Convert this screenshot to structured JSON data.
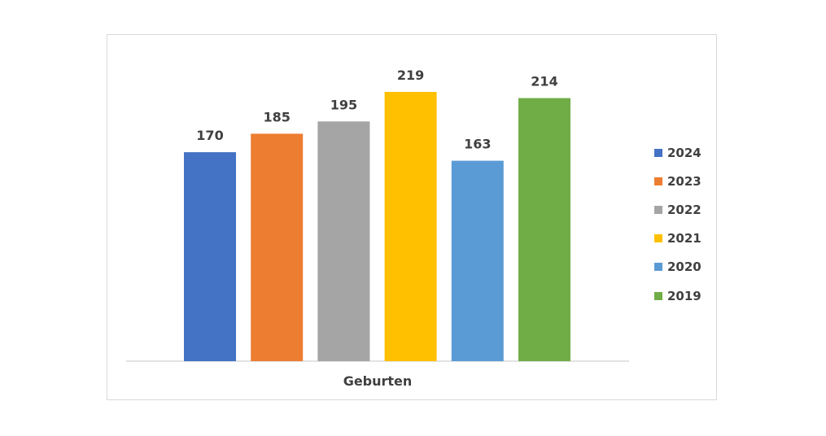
{
  "chart_data": {
    "type": "bar",
    "categories": [
      "Geburten"
    ],
    "xlabel": "Geburten",
    "ylim": [
      0,
      219
    ],
    "grid": false,
    "legend_position": "right",
    "series": [
      {
        "name": "2024",
        "values": [
          170
        ],
        "color": "#4472C4"
      },
      {
        "name": "2023",
        "values": [
          185
        ],
        "color": "#ED7D31"
      },
      {
        "name": "2022",
        "values": [
          195
        ],
        "color": "#A5A5A5"
      },
      {
        "name": "2021",
        "values": [
          219
        ],
        "color": "#FFC000"
      },
      {
        "name": "2020",
        "values": [
          163
        ],
        "color": "#5B9BD5"
      },
      {
        "name": "2019",
        "values": [
          214
        ],
        "color": "#70AD47"
      }
    ]
  }
}
